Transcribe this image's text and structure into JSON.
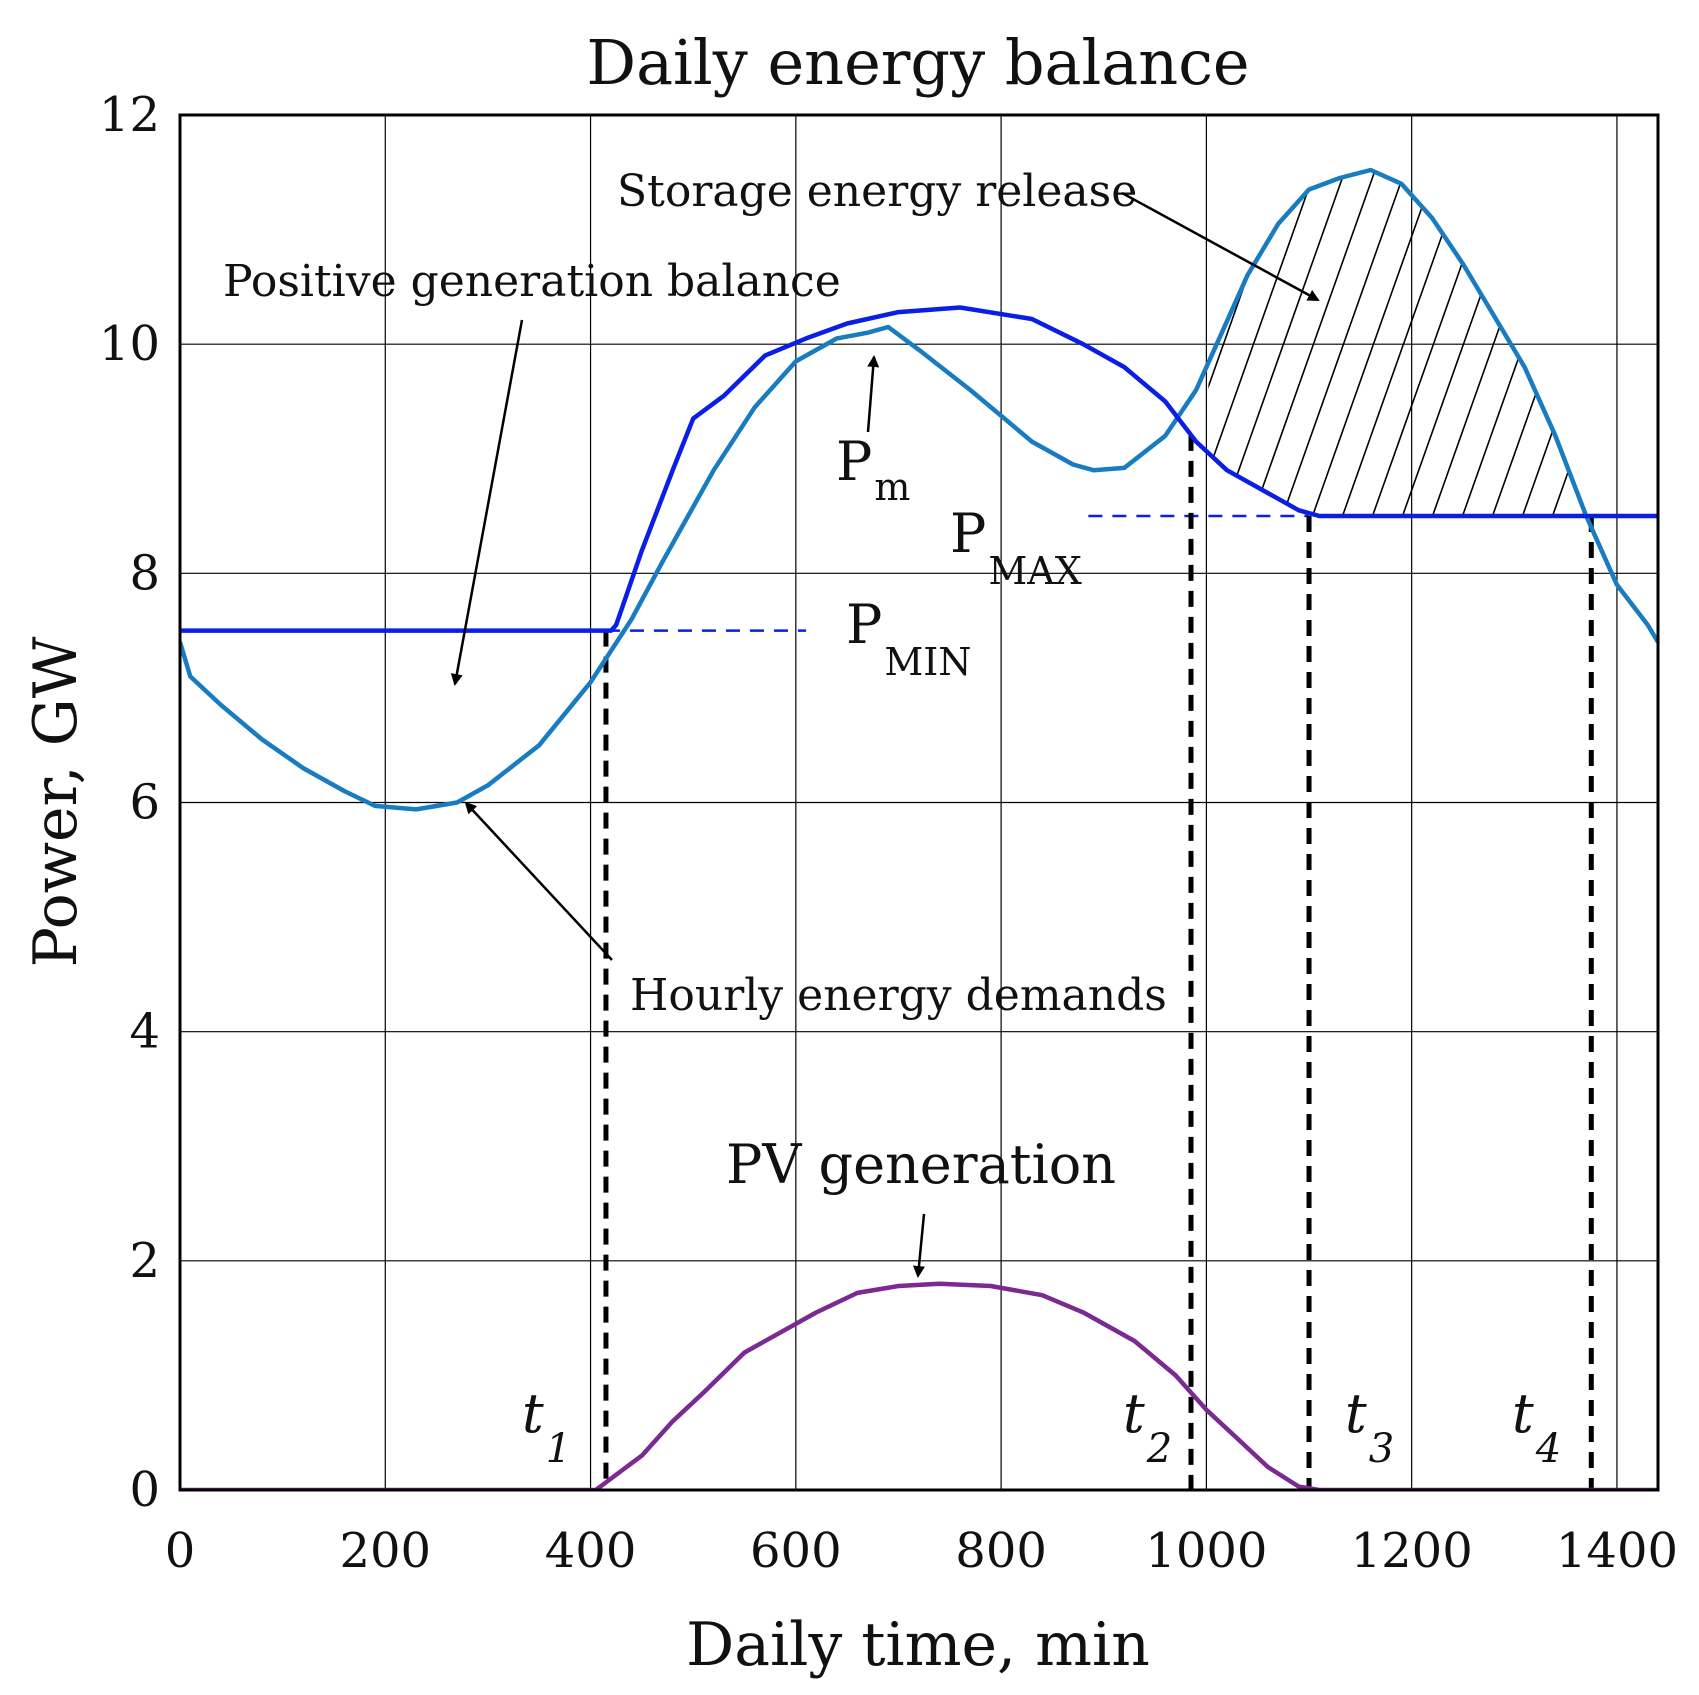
{
  "chart_data": {
    "type": "line",
    "title": "Daily energy balance",
    "xlabel": "Daily time, min",
    "ylabel": "Power, GW",
    "xlim": [
      0,
      1440
    ],
    "ylim": [
      0,
      12
    ],
    "xticks": [
      0,
      200,
      400,
      600,
      800,
      1000,
      1200,
      1400
    ],
    "yticks": [
      0,
      2,
      4,
      6,
      8,
      10,
      12
    ],
    "grid": true,
    "colors": {
      "demand": "#1a7cc0",
      "generation": "#0a1ee6",
      "pv": "#7a2a90"
    },
    "series": [
      {
        "name": "Hourly energy demands",
        "color": "#1a7cc0",
        "x": [
          0,
          10,
          40,
          80,
          120,
          160,
          190,
          230,
          270,
          300,
          350,
          400,
          440,
          470,
          520,
          560,
          600,
          640,
          670,
          690,
          720,
          770,
          830,
          870,
          890,
          920,
          960,
          990,
          1010,
          1040,
          1070,
          1100,
          1130,
          1160,
          1190,
          1220,
          1250,
          1280,
          1310,
          1340,
          1370,
          1400,
          1430,
          1440
        ],
        "y": [
          7.4,
          7.1,
          6.85,
          6.55,
          6.3,
          6.1,
          5.97,
          5.94,
          6.0,
          6.15,
          6.5,
          7.05,
          7.6,
          8.1,
          8.9,
          9.45,
          9.85,
          10.05,
          10.1,
          10.15,
          9.95,
          9.6,
          9.15,
          8.95,
          8.9,
          8.92,
          9.2,
          9.6,
          10.0,
          10.6,
          11.05,
          11.35,
          11.45,
          11.52,
          11.4,
          11.1,
          10.7,
          10.25,
          9.8,
          9.2,
          8.5,
          7.9,
          7.55,
          7.4
        ]
      },
      {
        "name": "Generation",
        "color": "#0a1ee6",
        "x": [
          0,
          420,
          425,
          450,
          480,
          500,
          530,
          570,
          610,
          650,
          700,
          760,
          830,
          880,
          920,
          960,
          990,
          1020,
          1060,
          1090,
          1110,
          1440
        ],
        "y": [
          7.5,
          7.5,
          7.55,
          8.2,
          8.9,
          9.35,
          9.55,
          9.9,
          10.05,
          10.18,
          10.28,
          10.32,
          10.22,
          10.0,
          9.8,
          9.5,
          9.15,
          8.9,
          8.7,
          8.55,
          8.5,
          8.5
        ]
      },
      {
        "name": "PV generation",
        "color": "#7a2a90",
        "x": [
          0,
          405,
          420,
          450,
          480,
          510,
          550,
          580,
          620,
          660,
          700,
          740,
          790,
          840,
          880,
          930,
          970,
          1000,
          1030,
          1060,
          1090,
          1110,
          1440
        ],
        "y": [
          0,
          0,
          0.1,
          0.3,
          0.6,
          0.85,
          1.2,
          1.35,
          1.55,
          1.72,
          1.78,
          1.8,
          1.78,
          1.7,
          1.55,
          1.3,
          1.0,
          0.7,
          0.45,
          0.2,
          0.03,
          0,
          0
        ]
      }
    ],
    "levels": {
      "p_min": 7.5,
      "p_max": 8.5
    },
    "times": {
      "t1": 415,
      "t2": 985,
      "t3": 1100,
      "t4": 1375
    },
    "hatch_region": {
      "from": 1002,
      "to": 1372
    },
    "labels": {
      "storage": "Storage energy release",
      "positive": "Positive generation balance",
      "pm_main": "P",
      "pm_sub": "m",
      "pmax_main": "P",
      "pmax_sub": "MAX",
      "pmin_main": "P",
      "pmin_sub": "MIN",
      "demands": "Hourly energy demands",
      "pv": "PV generation",
      "t_main": "t",
      "t1_sub": "1",
      "t2_sub": "2",
      "t3_sub": "3",
      "t4_sub": "4"
    }
  }
}
